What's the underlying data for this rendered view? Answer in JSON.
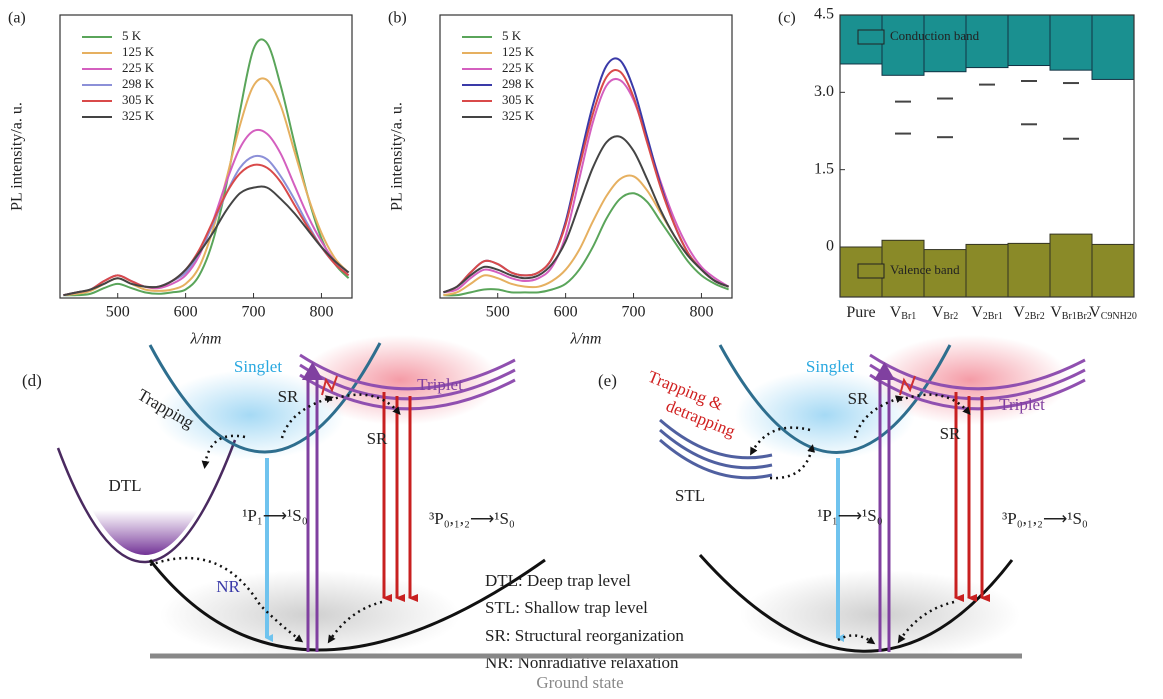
{
  "chart_data": [
    {
      "type": "line",
      "panel_label": "(a)",
      "xlabel": "λ/nm",
      "ylabel": "PL intensity/a. u.",
      "x": [
        420,
        440,
        460,
        480,
        500,
        520,
        540,
        560,
        580,
        600,
        620,
        640,
        660,
        680,
        700,
        720,
        740,
        760,
        780,
        800,
        820,
        840
      ],
      "xlim": [
        415,
        845
      ],
      "xticks": [
        500,
        600,
        700,
        800
      ],
      "ylim": [
        0,
        100
      ],
      "series": [
        {
          "name": "5 K",
          "color": "#5aa55a",
          "values": [
            1,
            1,
            1.5,
            3.5,
            5,
            3.5,
            2,
            1.5,
            2,
            3,
            8,
            20,
            40,
            66,
            88,
            90,
            75,
            55,
            36,
            21,
            12,
            7
          ]
        },
        {
          "name": "125 K",
          "color": "#e6b060",
          "values": [
            1,
            1.5,
            2.5,
            5,
            7,
            5,
            3,
            2.5,
            3,
            5,
            11,
            24,
            42,
            61,
            75,
            77,
            68,
            52,
            36,
            23,
            14,
            9
          ]
        },
        {
          "name": "225 K",
          "color": "#d45fbf",
          "values": [
            1,
            2,
            3,
            6,
            8,
            6,
            4,
            3.5,
            5,
            8,
            15,
            27,
            41,
            53,
            59,
            58,
            51,
            40,
            29,
            20,
            13,
            9
          ]
        },
        {
          "name": "298 K",
          "color": "#8c90d8",
          "values": [
            1,
            2,
            3,
            6,
            8,
            6,
            4,
            4,
            6,
            9,
            16,
            26,
            37,
            46,
            50,
            49,
            43,
            35,
            26,
            18,
            12,
            8
          ]
        },
        {
          "name": "305 K",
          "color": "#d94a4a",
          "values": [
            1,
            2,
            3,
            6,
            8,
            6,
            4,
            4,
            6,
            10,
            17,
            27,
            37,
            44,
            47,
            46,
            41,
            33,
            25,
            18,
            12,
            8
          ]
        },
        {
          "name": "325 K",
          "color": "#444444",
          "values": [
            1,
            2,
            3,
            5,
            7,
            5,
            4,
            4,
            6,
            10,
            16,
            23,
            31,
            37,
            39,
            39,
            35,
            30,
            24,
            18,
            13,
            9
          ]
        }
      ]
    },
    {
      "type": "line",
      "panel_label": "(b)",
      "xlabel": "λ/nm",
      "ylabel": "PL intensity/a. u.",
      "x": [
        420,
        440,
        460,
        480,
        500,
        520,
        540,
        560,
        580,
        600,
        620,
        640,
        660,
        680,
        700,
        720,
        740,
        760,
        780,
        800,
        820,
        840
      ],
      "xlim": [
        415,
        845
      ],
      "xticks": [
        500,
        600,
        700,
        800
      ],
      "ylim": [
        0,
        100
      ],
      "series": [
        {
          "name": "5 K",
          "color": "#5aa55a",
          "values": [
            1,
            1,
            2,
            3,
            3,
            2,
            2,
            2,
            3,
            5,
            10,
            18,
            28,
            35,
            37,
            34,
            27,
            20,
            13,
            8,
            5,
            3
          ]
        },
        {
          "name": "125 K",
          "color": "#e6b060",
          "values": [
            1,
            2,
            5,
            8,
            7,
            5,
            4,
            4,
            6,
            10,
            17,
            27,
            36,
            42,
            43,
            38,
            30,
            22,
            15,
            10,
            6,
            4
          ]
        },
        {
          "name": "225 K",
          "color": "#d45fbf",
          "values": [
            2,
            3,
            7,
            10,
            9,
            7,
            6,
            7,
            11,
            22,
            42,
            62,
            75,
            77,
            70,
            56,
            41,
            28,
            18,
            11,
            7,
            4
          ]
        },
        {
          "name": "298 K",
          "color": "#3a3aa8",
          "values": [
            2,
            4,
            9,
            13,
            12,
            9,
            8,
            9,
            14,
            27,
            48,
            68,
            82,
            84,
            74,
            57,
            40,
            26,
            16,
            10,
            6,
            4
          ]
        },
        {
          "name": "305 K",
          "color": "#d94a4a",
          "values": [
            2,
            4,
            9,
            13,
            12,
            9,
            8,
            9,
            14,
            26,
            46,
            65,
            78,
            80,
            71,
            55,
            39,
            26,
            16,
            10,
            6,
            4
          ]
        },
        {
          "name": "325 K",
          "color": "#444444",
          "values": [
            2,
            4,
            8,
            11,
            10,
            8,
            7,
            8,
            12,
            20,
            33,
            46,
            55,
            57,
            52,
            42,
            31,
            22,
            15,
            10,
            6,
            4
          ]
        }
      ]
    },
    {
      "type": "bands",
      "panel_label": "(c)",
      "categories": [
        [
          "Pure"
        ],
        [
          "V",
          "Br1"
        ],
        [
          "V",
          "Br2"
        ],
        [
          "V",
          "2Br1"
        ],
        [
          "V",
          "2Br2"
        ],
        [
          "V",
          "Br1Br2"
        ],
        [
          "V",
          "C9NH20"
        ]
      ],
      "ylim": [
        -0.97,
        4.5
      ],
      "yticks": [
        0,
        1.5,
        {
          "value": 3,
          "label": "3.0"
        },
        4.5
      ],
      "series": [
        {
          "name": "Conduction band",
          "color": "#1a9090",
          "values": [
            3.55,
            3.33,
            3.4,
            3.48,
            3.52,
            3.43,
            3.25
          ]
        },
        {
          "name": "Valence band",
          "color": "#8a8a28",
          "values": [
            0,
            0.13,
            -0.05,
            0.05,
            0.07,
            0.25,
            0.05
          ]
        }
      ],
      "trap_levels": [
        [],
        [
          2.82,
          2.2
        ],
        [
          2.88,
          2.13
        ],
        [
          3.15
        ],
        [
          3.22,
          2.38
        ],
        [
          3.18,
          2.1
        ],
        []
      ]
    }
  ],
  "diagrams": {
    "d": {
      "panel_label": "(d)",
      "singlet": "Singlet",
      "trapping": "Trapping",
      "sr_1": "SR",
      "triplet": "Triplet",
      "sr_2": "SR",
      "trap": "DTL",
      "singlet_transition": "¹P₁⟶¹S₀",
      "triplet_transition": "³P₀,₁,₂⟶¹S₀",
      "nr": "NR"
    },
    "e": {
      "panel_label": "(e)",
      "singlet": "Singlet",
      "trapping_1": "Trapping &",
      "trapping_2": "detrapping",
      "sr_1": "SR",
      "triplet": "Triplet",
      "sr_2": "SR",
      "trap": "STL",
      "singlet_transition": "¹P₁⟶¹S₀",
      "triplet_transition": "³P₀,₁,₂⟶¹S₀"
    },
    "legend": [
      "DTL: Deep trap level",
      "STL: Shallow trap level",
      "SR: Structural reorganization",
      "NR: Nonradiative relaxation"
    ],
    "ground_state": "Ground state"
  }
}
